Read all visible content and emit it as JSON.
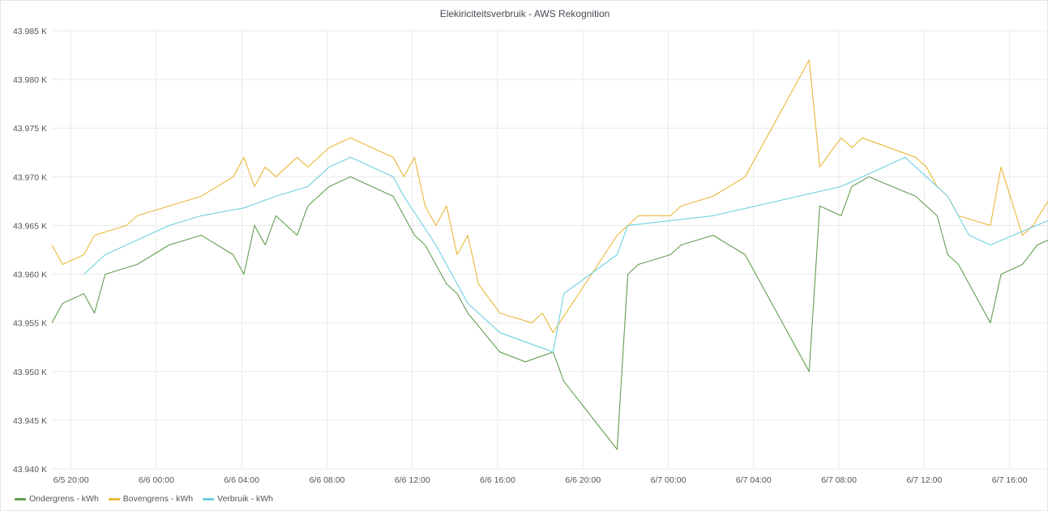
{
  "chart_data": {
    "type": "line",
    "title": "Elekiriciteitsverbruik - AWS Rekognition",
    "xlabel": "",
    "ylabel": "",
    "y_ticks": [
      "43.940 K",
      "43.945 K",
      "43.950 K",
      "43.955 K",
      "43.960 K",
      "43.965 K",
      "43.970 K",
      "43.975 K",
      "43.980 K",
      "43.985 K"
    ],
    "ylim": [
      43.94,
      43.985
    ],
    "x_ticks": [
      "6/5 20:00",
      "6/6 00:00",
      "6/6 04:00",
      "6/6 08:00",
      "6/6 12:00",
      "6/6 16:00",
      "6/6 20:00",
      "6/7 00:00",
      "6/7 04:00",
      "6/7 08:00",
      "6/7 12:00",
      "6/7 16:00"
    ],
    "x_tick_hours": [
      20,
      24,
      28,
      32,
      36,
      40,
      44,
      48,
      52,
      56,
      60,
      64
    ],
    "xlim": [
      19.1,
      65.8
    ],
    "grid": true,
    "legend_position": "bottom-left",
    "series": [
      {
        "name": "Ondergrens - kWh",
        "color": "#629e51",
        "x": [
          19.1,
          19.6,
          20.6,
          21.1,
          21.6,
          23.1,
          24.6,
          26.1,
          27.6,
          28.1,
          28.6,
          29.1,
          29.6,
          30.6,
          31.1,
          32.1,
          33.1,
          35.1,
          36.1,
          36.6,
          37.6,
          38.1,
          38.6,
          40.1,
          41.3,
          42.6,
          43.1,
          45.6,
          46.1,
          46.6,
          48.1,
          48.6,
          50.1,
          51.6,
          54.6,
          55.1,
          56.1,
          56.6,
          57.4,
          59.6,
          60.6,
          61.1,
          61.6,
          63.1,
          63.6,
          64.6,
          65.3,
          65.8
        ],
        "y": [
          43.955,
          43.957,
          43.958,
          43.956,
          43.96,
          43.961,
          43.963,
          43.964,
          43.962,
          43.96,
          43.965,
          43.963,
          43.966,
          43.964,
          43.967,
          43.969,
          43.97,
          43.968,
          43.964,
          43.963,
          43.959,
          43.958,
          43.956,
          43.952,
          43.951,
          43.952,
          43.949,
          43.942,
          43.96,
          43.961,
          43.962,
          43.963,
          43.964,
          43.962,
          43.95,
          43.967,
          43.966,
          43.969,
          43.97,
          43.968,
          43.966,
          43.962,
          43.961,
          43.955,
          43.96,
          43.961,
          43.963,
          43.9635
        ]
      },
      {
        "name": "Bovengrens - kWh",
        "color": "#eab839",
        "x": [
          19.1,
          19.6,
          20.6,
          21.1,
          22.6,
          23.1,
          24.6,
          26.1,
          27.6,
          28.1,
          28.6,
          29.1,
          29.6,
          30.6,
          31.1,
          32.1,
          33.1,
          35.1,
          35.6,
          36.1,
          36.6,
          37.1,
          37.6,
          38.1,
          38.6,
          39.1,
          40.1,
          41.6,
          42.1,
          42.6,
          45.6,
          46.1,
          46.6,
          48.1,
          48.6,
          50.1,
          51.6,
          54.6,
          55.1,
          56.1,
          56.6,
          57.1,
          59.6,
          60.1,
          60.6,
          61.1,
          61.6,
          63.1,
          63.6,
          64.6,
          65.1,
          65.8
        ],
        "y": [
          43.963,
          43.961,
          43.962,
          43.964,
          43.965,
          43.966,
          43.967,
          43.968,
          43.97,
          43.972,
          43.969,
          43.971,
          43.97,
          43.972,
          43.971,
          43.973,
          43.974,
          43.972,
          43.97,
          43.972,
          43.967,
          43.965,
          43.967,
          43.962,
          43.964,
          43.959,
          43.956,
          43.955,
          43.956,
          43.954,
          43.964,
          43.965,
          43.966,
          43.966,
          43.967,
          43.968,
          43.97,
          43.982,
          43.971,
          43.974,
          43.973,
          43.974,
          43.972,
          43.971,
          43.969,
          43.968,
          43.966,
          43.965,
          43.971,
          43.964,
          43.965,
          43.9675
        ]
      },
      {
        "name": "Verbruik - kWh",
        "color": "#6ed0e0",
        "x": [
          20.6,
          21.6,
          24.6,
          26.1,
          28.1,
          29.6,
          31.1,
          32.1,
          33.1,
          35.1,
          35.6,
          37.1,
          38.6,
          40.1,
          42.6,
          43.1,
          45.6,
          46.1,
          50.1,
          56.1,
          57.1,
          58.1,
          59.1,
          60.1,
          61.1,
          62.1,
          63.1,
          65.8
        ],
        "y": [
          43.96,
          43.962,
          43.965,
          43.966,
          43.9668,
          43.968,
          43.969,
          43.971,
          43.972,
          43.97,
          43.968,
          43.963,
          43.957,
          43.954,
          43.952,
          43.958,
          43.962,
          43.965,
          43.966,
          43.969,
          43.97,
          43.971,
          43.972,
          43.97,
          43.968,
          43.964,
          43.963,
          43.9655
        ]
      }
    ]
  },
  "legend": {
    "items": [
      {
        "label": "Ondergrens - kWh",
        "color": "#629e51"
      },
      {
        "label": "Bovengrens - kWh",
        "color": "#eab839"
      },
      {
        "label": "Verbruik - kWh",
        "color": "#6ed0e0"
      }
    ]
  }
}
